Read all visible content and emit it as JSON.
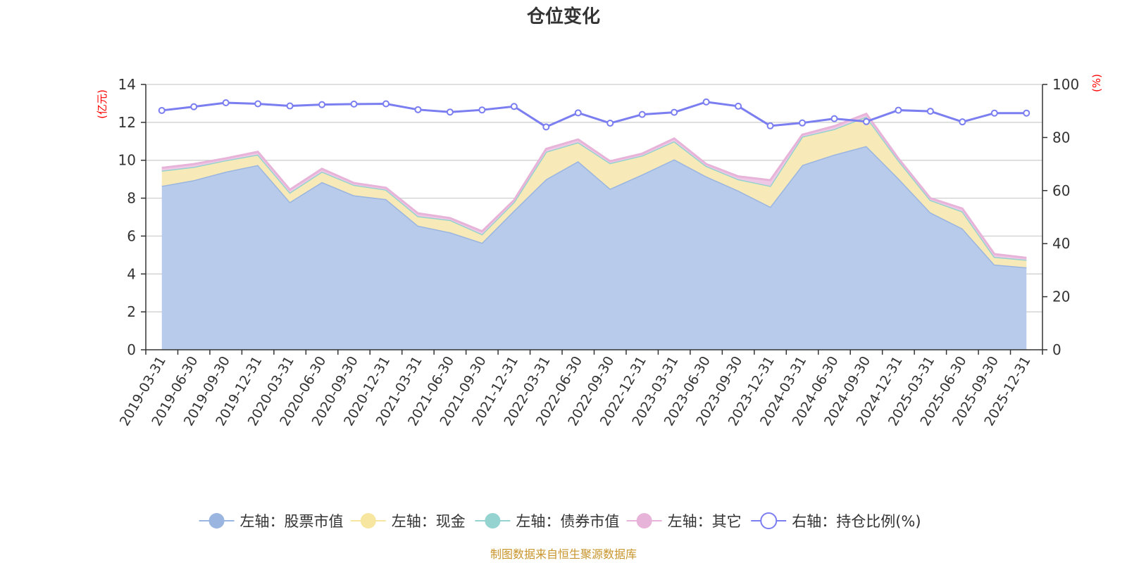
{
  "chart_data": {
    "type": "area",
    "title": "仓位变化",
    "left_axis_unit": "(亿元)",
    "right_axis_unit": "(%)",
    "left_ylim": [
      0,
      14
    ],
    "left_yticks": [
      0,
      2,
      4,
      6,
      8,
      10,
      12,
      14
    ],
    "right_ylim": [
      0,
      100
    ],
    "right_yticks": [
      0,
      20,
      40,
      60,
      80,
      100
    ],
    "grid": true,
    "legend_position": "bottom",
    "source": "制图数据来自恒生聚源数据库",
    "categories": [
      "2019-03-31",
      "2019-06-30",
      "2019-09-30",
      "2019-12-31",
      "2020-03-31",
      "2020-06-30",
      "2020-09-30",
      "2020-12-31",
      "2021-03-31",
      "2021-06-30",
      "2021-09-30",
      "2021-12-31",
      "2022-03-31",
      "2022-06-30",
      "2022-09-30",
      "2022-12-31",
      "2023-03-31",
      "2023-06-30",
      "2023-09-30",
      "2023-12-31",
      "2024-03-31",
      "2024-06-30",
      "2024-09-30",
      "2024-12-31",
      "2025-03-31",
      "2025-06-30",
      "2025-09-30",
      "2025-12-31"
    ],
    "series": [
      {
        "name": "左轴：股票市值",
        "axis": "left",
        "color": "#9ab5e0",
        "fill": "#b8cbea",
        "values": [
          8.65,
          8.95,
          9.4,
          9.75,
          7.8,
          8.85,
          8.15,
          7.95,
          6.55,
          6.2,
          5.65,
          7.35,
          9.0,
          9.95,
          8.5,
          9.25,
          10.05,
          9.15,
          8.4,
          7.55,
          9.75,
          10.3,
          10.75,
          9.05,
          7.25,
          6.4,
          4.5,
          4.35
        ]
      },
      {
        "name": "左轴：现金",
        "axis": "left",
        "color": "#f7e6a0",
        "fill": "#f8eab8",
        "values": [
          0.8,
          0.7,
          0.6,
          0.55,
          0.5,
          0.55,
          0.55,
          0.5,
          0.5,
          0.65,
          0.45,
          0.45,
          1.45,
          1.0,
          1.35,
          1.0,
          0.95,
          0.55,
          0.6,
          1.1,
          1.5,
          1.35,
          1.55,
          0.95,
          0.65,
          0.9,
          0.4,
          0.4
        ]
      },
      {
        "name": "左轴：债券市值",
        "axis": "left",
        "color": "#95d3d0",
        "fill": "#b4e3e0",
        "values": [
          0,
          0,
          0,
          0,
          0,
          0,
          0,
          0,
          0,
          0,
          0,
          0,
          0,
          0,
          0,
          0,
          0,
          0,
          0,
          0,
          0,
          0,
          0,
          0,
          0,
          0,
          0,
          0
        ]
      },
      {
        "name": "左轴：其它",
        "axis": "left",
        "color": "#e8b3d9",
        "fill": "#efc8e5",
        "values": [
          0.15,
          0.15,
          0.1,
          0.15,
          0.15,
          0.15,
          0.1,
          0.1,
          0.15,
          0.1,
          0.15,
          0.1,
          0.15,
          0.15,
          0.1,
          0.1,
          0.15,
          0.1,
          0.15,
          0.3,
          0.1,
          0.15,
          0.15,
          0.1,
          0.1,
          0.15,
          0.15,
          0.1
        ]
      },
      {
        "name": "右轴：持仓比例(%)",
        "axis": "right",
        "color": "#7b7ef0",
        "values": [
          90.2,
          91.6,
          93.1,
          92.7,
          91.9,
          92.4,
          92.6,
          92.7,
          90.5,
          89.6,
          90.4,
          91.7,
          84.0,
          89.3,
          85.4,
          88.7,
          89.5,
          93.4,
          91.8,
          84.4,
          85.5,
          87.1,
          86.0,
          90.3,
          89.9,
          85.9,
          89.2,
          89.2
        ]
      }
    ]
  }
}
